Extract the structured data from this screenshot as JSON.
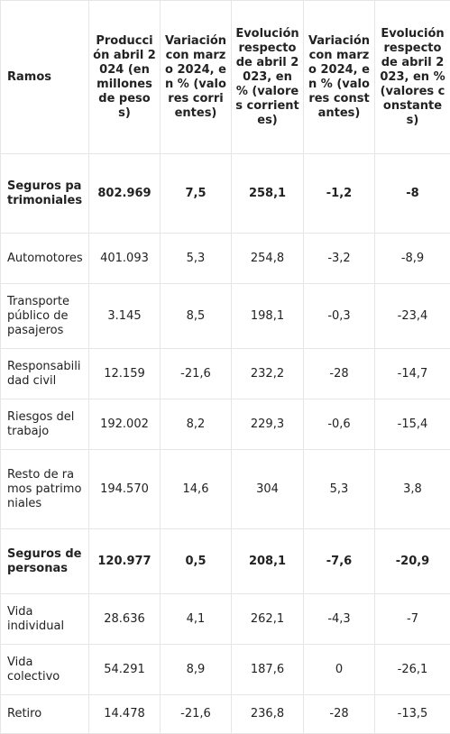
{
  "headers": [
    "Ramos",
    "Producción abril 2024 (en millones de pesos)",
    "Variación con marzo 2024, en % (valores corrientes)",
    "Evolución respecto de abril 2023, en % (valores corrientes)",
    "Variación con marzo 2024, en % (valores constantes)",
    "Evolución respecto de abril 2023, en % (valores constantes)"
  ],
  "rows": [
    {
      "ramo": "Seguros patrimoniales",
      "produccion": "802.969",
      "var_corr": "7,5",
      "evo_corr": "258,1",
      "var_const": "-1,2",
      "evo_const": "-8"
    },
    {
      "ramo": "Automotores",
      "produccion": "401.093",
      "var_corr": "5,3",
      "evo_corr": "254,8",
      "var_const": "-3,2",
      "evo_const": "-8,9"
    },
    {
      "ramo": "Transporte público de pasajeros",
      "produccion": "3.145",
      "var_corr": "8,5",
      "evo_corr": "198,1",
      "var_const": "-0,3",
      "evo_const": "-23,4"
    },
    {
      "ramo": "Responsabilidad civil",
      "produccion": "12.159",
      "var_corr": "-21,6",
      "evo_corr": "232,2",
      "var_const": "-28",
      "evo_const": "-14,7"
    },
    {
      "ramo": "Riesgos del trabajo",
      "produccion": "192.002",
      "var_corr": "8,2",
      "evo_corr": "229,3",
      "var_const": "-0,6",
      "evo_const": "-15,4"
    },
    {
      "ramo": "Resto de ramos patrimoniales",
      "produccion": "194.570",
      "var_corr": "14,6",
      "evo_corr": "304",
      "var_const": "5,3",
      "evo_const": "3,8"
    },
    {
      "ramo": "Seguros de personas",
      "produccion": "120.977",
      "var_corr": "0,5",
      "evo_corr": "208,1",
      "var_const": "-7,6",
      "evo_const": "-20,9"
    },
    {
      "ramo": "Vida individual",
      "produccion": "28.636",
      "var_corr": "4,1",
      "evo_corr": "262,1",
      "var_const": "-4,3",
      "evo_const": "-7"
    },
    {
      "ramo": "Vida colectivo",
      "produccion": "54.291",
      "var_corr": "8,9",
      "evo_corr": "187,6",
      "var_const": "0",
      "evo_const": "-26,1"
    },
    {
      "ramo": "Retiro",
      "produccion": "14.478",
      "var_corr": "-21,6",
      "evo_corr": "236,8",
      "var_const": "-28",
      "evo_const": "-13,5"
    }
  ]
}
